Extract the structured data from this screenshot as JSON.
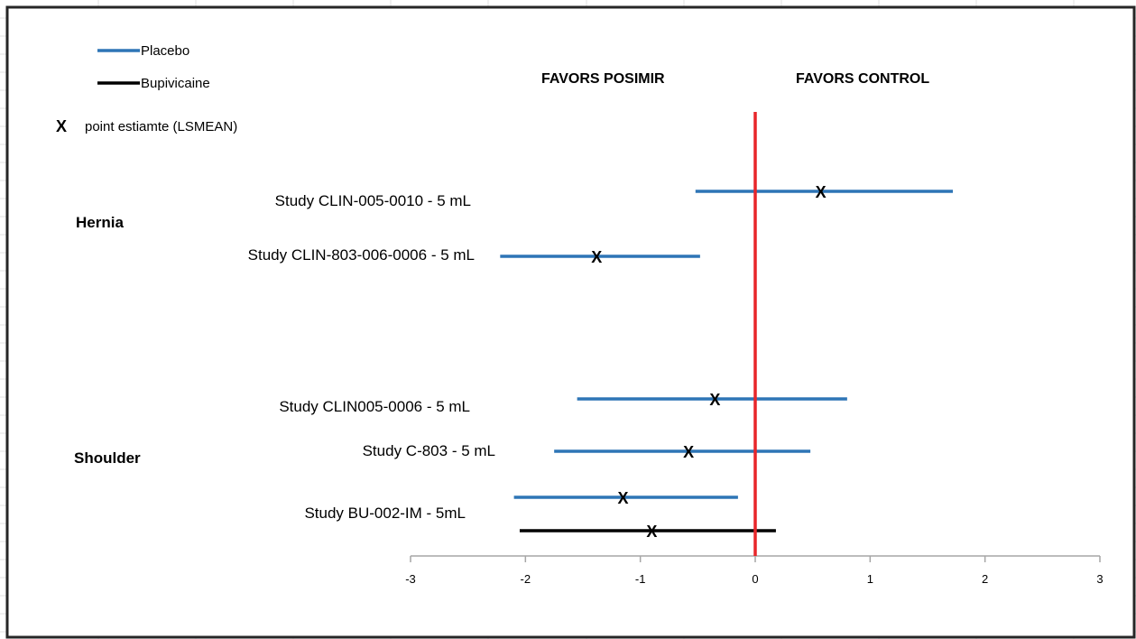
{
  "chart_data": {
    "type": "forest",
    "xlim": [
      -3,
      3
    ],
    "x_ticks": [
      -3,
      -2,
      -1,
      0,
      1,
      2,
      3
    ],
    "reference_line": 0,
    "legend": [
      {
        "key": "placebo",
        "name": "Placebo",
        "color": "#2E75B6"
      },
      {
        "key": "bupivicaine",
        "name": "Bupivicaine",
        "color": "#000000"
      }
    ],
    "point_legend": {
      "symbol": "X",
      "text": "point estiamte (LSMEAN)"
    },
    "region_labels": {
      "left": "FAVORS POSIMIR",
      "right": "FAVORS CONTROL"
    },
    "groups": [
      {
        "label": "Hernia"
      },
      {
        "label": "Shoulder"
      }
    ],
    "studies": [
      {
        "label": "Study CLIN-005-0010 - 5 mL",
        "group": "Hernia",
        "comparator": "placebo",
        "lower": -0.52,
        "estimate": 0.57,
        "upper": 1.72
      },
      {
        "label": "Study CLIN-803-006-0006 - 5 mL",
        "group": "Hernia",
        "comparator": "placebo",
        "lower": -2.22,
        "estimate": -1.38,
        "upper": -0.48
      },
      {
        "label": "Study CLIN005-0006 - 5 mL",
        "group": "Shoulder",
        "comparator": "placebo",
        "lower": -1.55,
        "estimate": -0.35,
        "upper": 0.8
      },
      {
        "label": "Study C-803 - 5 mL",
        "group": "Shoulder",
        "comparator": "placebo",
        "lower": -1.75,
        "estimate": -0.58,
        "upper": 0.48
      },
      {
        "label": "Study BU-002-IM - 5mL",
        "group": "Shoulder",
        "comparator": "placebo",
        "lower": -2.1,
        "estimate": -1.15,
        "upper": -0.15
      },
      {
        "label": "",
        "group": "Shoulder",
        "comparator": "bupivicaine",
        "lower": -2.05,
        "estimate": -0.9,
        "upper": 0.18
      }
    ]
  },
  "colors": {
    "reference_line": "#E8262A",
    "axis": "#A6A6A6",
    "frame": "#262626",
    "gridline": "#E2E2E2"
  }
}
